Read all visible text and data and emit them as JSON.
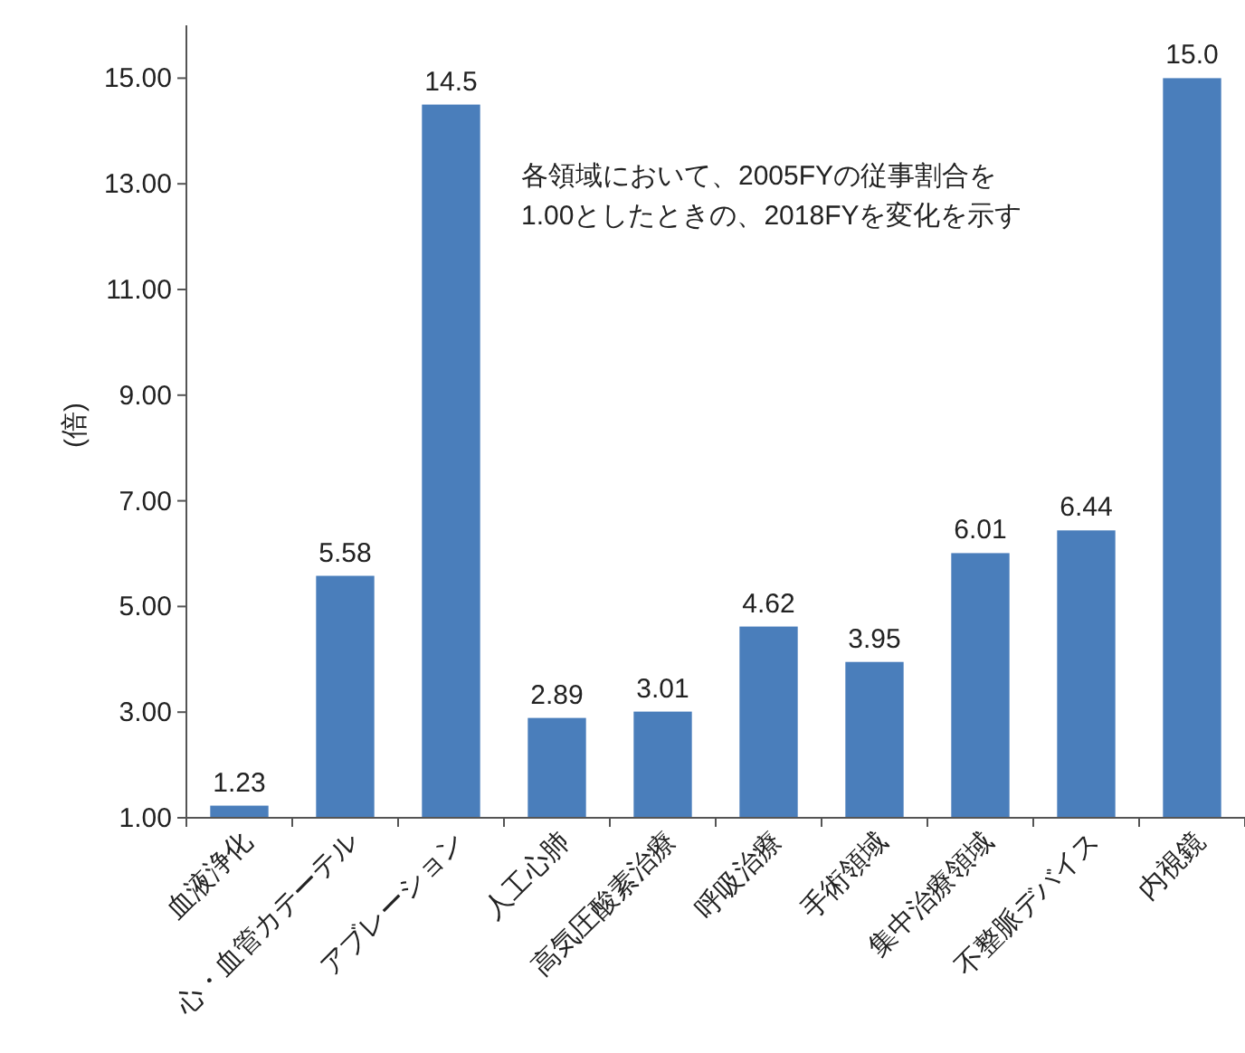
{
  "chart_data": {
    "type": "bar",
    "ylabel": "(倍)",
    "categories": [
      "血液浄化",
      "心・血管カテーテル",
      "アブレーション",
      "人工心肺",
      "高気圧酸素治療",
      "呼吸治療",
      "手術領域",
      "集中治療領域",
      "不整脈デバイス",
      "内視鏡"
    ],
    "values": [
      1.23,
      5.58,
      14.5,
      2.89,
      3.01,
      4.62,
      3.95,
      6.01,
      6.44,
      15.0
    ],
    "value_labels": [
      "1.23",
      "5.58",
      "14.5",
      "2.89",
      "3.01",
      "4.62",
      "3.95",
      "6.01",
      "6.44",
      "15.0"
    ],
    "color": "#4a7ebb",
    "ylim": [
      1,
      16
    ],
    "yticks": [
      {
        "value": 1,
        "label": "1.00"
      },
      {
        "value": 3,
        "label": "3.00"
      },
      {
        "value": 5,
        "label": "5.00"
      },
      {
        "value": 7,
        "label": "7.00"
      },
      {
        "value": 9,
        "label": "9.00"
      },
      {
        "value": 11,
        "label": "11.00"
      },
      {
        "value": 13,
        "label": "13.00"
      },
      {
        "value": 15,
        "label": "15.00"
      }
    ],
    "annotations": [
      "各領域において、2005FYの従事割合を\n1.00としたときの、2018FYを変化を示す"
    ]
  }
}
